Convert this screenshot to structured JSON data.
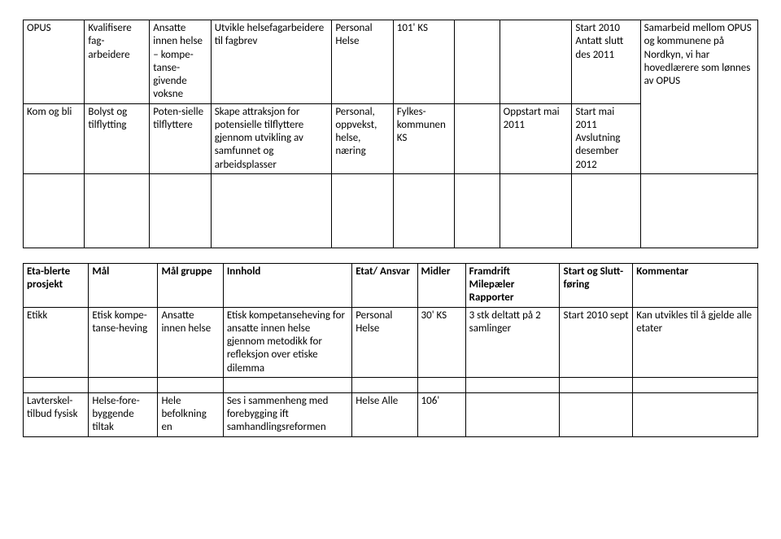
{
  "table1": {
    "rows": [
      {
        "c1": "OPUS",
        "c2": "Kvalifisere fag-arbeidere",
        "c3": "Ansatte innen helse – kompe-tanse-givende voksne",
        "c4": "Utvikle helsefagarbeidere til fagbrev",
        "c5": "Personal Helse",
        "c6": "101' KS",
        "c7": "",
        "c8": "",
        "c9": "Start 2010 Antatt slutt des 2011",
        "c10": "Samarbeid mellom OPUS og kommunene på Nordkyn, vi har hovedlærere som lønnes av OPUS"
      },
      {
        "c1": "Kom og bli",
        "c2": "Bolyst og tilflytting",
        "c3": "Poten-sielle tilflyttere",
        "c4": "Skape attraksjon for potensielle tilflyttere gjennom utvikling av samfunnet og arbeidsplasser",
        "c5": "Personal, oppvekst, helse, næring",
        "c6": "Fylkes-kommunen KS",
        "c7": "",
        "c8": "Oppstart mai 2011",
        "c9": "Start mai 2011 Avslutning desember 2012",
        "c10": ""
      }
    ]
  },
  "table2": {
    "headers": {
      "h1": "Eta-blerte prosjekt",
      "h2": "Mål",
      "h3": "Mål gruppe",
      "h4": "Innhold",
      "h5": "Etat/ Ansvar",
      "h6": "Midler",
      "h7": "Framdrift Milepæler Rapporter",
      "h8": "Start og Slutt-føring",
      "h9": "Kommentar"
    },
    "rows": [
      {
        "c1": "Etikk",
        "c2": "Etisk kompe-tanse-heving",
        "c3": "Ansatte innen helse",
        "c4": "Etisk kompetanseheving for ansatte innen helse gjennom metodikk for refleksjon over etiske dilemma",
        "c5": "Personal Helse",
        "c6": "30' KS",
        "c7": "3 stk deltatt på 2 samlinger",
        "c8": "Start 2010 sept",
        "c9": "Kan utvikles til å gjelde alle etater"
      }
    ],
    "row2": {
      "c1": "Lavterskel-tilbud fysisk",
      "c2": "Helse-fore-byggende tiltak",
      "c3": "Hele befolkning en",
      "c4": "Ses i sammenheng med forebygging ift samhandlingsreformen",
      "c5": "Helse Alle",
      "c6": "106'",
      "c7": "",
      "c8": "",
      "c9": ""
    }
  }
}
